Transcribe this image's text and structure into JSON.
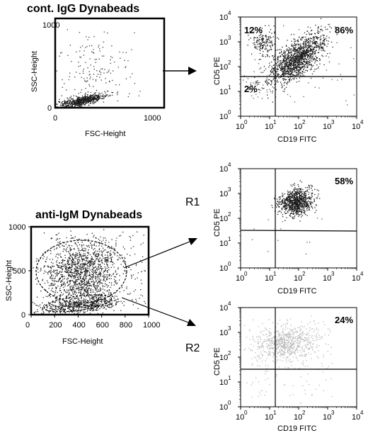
{
  "chart_data": [
    {
      "id": "control-scatter",
      "type": "scatter",
      "title": "cont. IgG Dynabeads",
      "xlabel": "FSC-Height",
      "ylabel": "SSC-Height",
      "xlim": [
        0,
        1000
      ],
      "ylim": [
        0,
        1000
      ],
      "x_ticks": [
        "0",
        "1000"
      ],
      "y_ticks": [
        "0",
        "1000"
      ],
      "populations": [
        {
          "name": "",
          "x_center": 200,
          "y_center": 90,
          "spread": "dense band"
        },
        {
          "name": "",
          "x_center": 300,
          "y_center": 450,
          "spread": "sparse"
        }
      ]
    },
    {
      "id": "control-cd5-cd19",
      "type": "scatter",
      "xlabel": "CD19 FITC",
      "ylabel": "CD5 PE",
      "xscale": "log",
      "yscale": "log",
      "xlim": [
        1,
        10000
      ],
      "ylim": [
        1,
        10000
      ],
      "x_ticks": [
        "10",
        "10",
        "10",
        "10",
        "10"
      ],
      "x_tick_exponents": [
        "0",
        "1",
        "2",
        "3",
        "4"
      ],
      "y_ticks": [
        "10",
        "10",
        "10",
        "10",
        "10"
      ],
      "y_tick_exponents": [
        "0",
        "1",
        "2",
        "3",
        "4"
      ],
      "quadrant_gate": {
        "x": 12,
        "y": 20
      },
      "quadrant_percentages": {
        "upper_left": "12%",
        "upper_right": "86%",
        "lower_left": "2%"
      }
    },
    {
      "id": "anti-igm-scatter",
      "type": "scatter",
      "title": "anti-IgM Dynabeads",
      "xlabel": "FSC-Height",
      "ylabel": "SSC-Height",
      "xlim": [
        0,
        1000
      ],
      "ylim": [
        0,
        1000
      ],
      "x_ticks": [
        "0",
        "200",
        "400",
        "600",
        "800",
        "1000"
      ],
      "y_ticks": [
        "0",
        "500",
        "1000"
      ],
      "gates": [
        {
          "label": "R1"
        },
        {
          "label": "R2"
        }
      ]
    },
    {
      "id": "r1-cd5-cd19",
      "type": "scatter",
      "xlabel": "CD19 FITC",
      "ylabel": "CD5 PE",
      "xscale": "log",
      "yscale": "log",
      "xlim": [
        1,
        10000
      ],
      "ylim": [
        1,
        10000
      ],
      "x_ticks": [
        "10",
        "10",
        "10",
        "10",
        "10"
      ],
      "x_tick_exponents": [
        "0",
        "1",
        "2",
        "3",
        "4"
      ],
      "y_ticks": [
        "10",
        "10",
        "10",
        "10",
        "10"
      ],
      "y_tick_exponents": [
        "0",
        "1",
        "2",
        "3",
        "4"
      ],
      "quadrant_gate": {
        "x": 12,
        "y": 20
      },
      "quadrant_percentages": {
        "upper_right": "58%"
      }
    },
    {
      "id": "r2-cd5-cd19",
      "type": "scatter",
      "xlabel": "CD19 FITC",
      "ylabel": "CD5 PE",
      "xscale": "log",
      "yscale": "log",
      "xlim": [
        1,
        10000
      ],
      "ylim": [
        1,
        10000
      ],
      "x_ticks": [
        "10",
        "10",
        "10",
        "10",
        "10"
      ],
      "x_tick_exponents": [
        "0",
        "1",
        "2",
        "3",
        "4"
      ],
      "y_ticks": [
        "10",
        "10",
        "10",
        "10",
        "10"
      ],
      "y_tick_exponents": [
        "0",
        "1",
        "2",
        "3",
        "4"
      ],
      "quadrant_gate": {
        "x": 12,
        "y": 20
      },
      "quadrant_percentages": {
        "upper_right": "24%"
      }
    }
  ],
  "gate_labels": {
    "r1": "R1",
    "r2": "R2"
  },
  "colors": {
    "dots_dark": "#1a1a1a",
    "dots_light": "#b8b8b8",
    "axes": "#000000"
  }
}
